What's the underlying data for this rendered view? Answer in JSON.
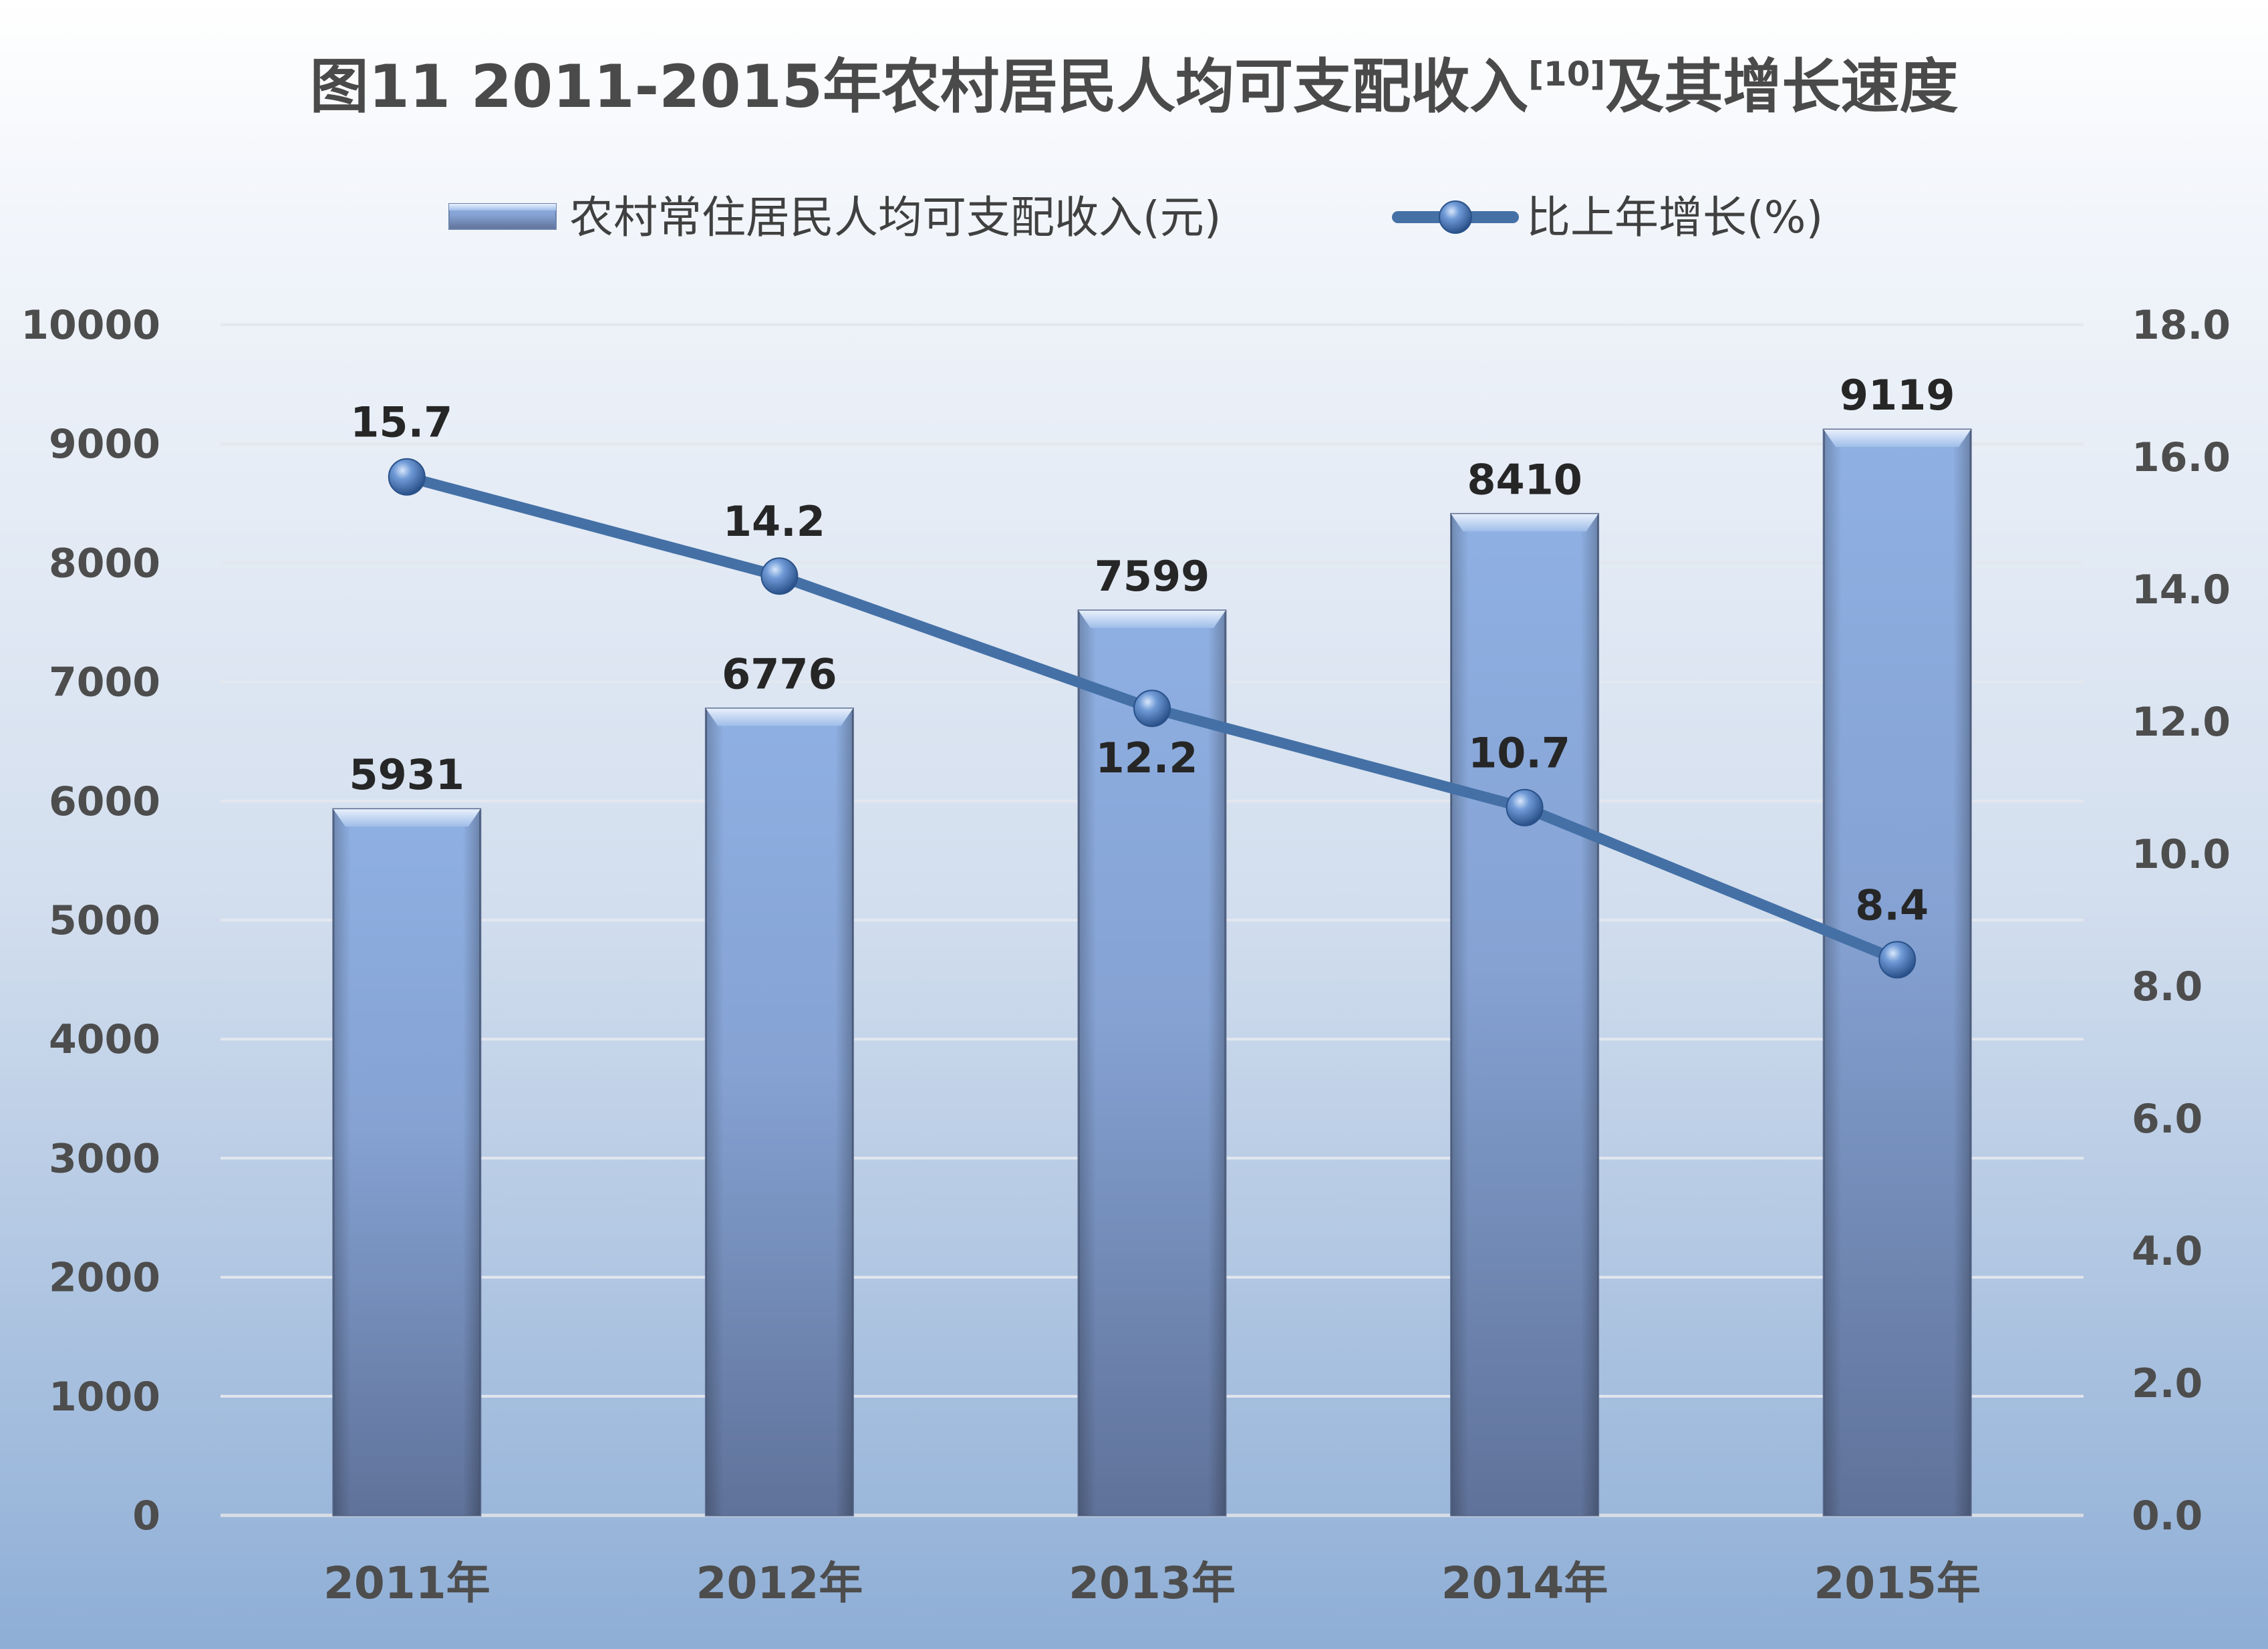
{
  "chart_data": {
    "type": "bar",
    "title": {
      "main": "图11   2011-2015年农村居民人均可支配收入",
      "superscript": "[10]",
      "suffix": "及其增长速度"
    },
    "categories": [
      "2011年",
      "2012年",
      "2013年",
      "2014年",
      "2015年"
    ],
    "series": [
      {
        "name": "农村常住居民人均可支配收入(元)",
        "type": "bar",
        "axis": "left",
        "values": [
          5931,
          6776,
          7599,
          8410,
          9119
        ],
        "labels": [
          "5931",
          "6776",
          "7599",
          "8410",
          "9119"
        ]
      },
      {
        "name": "比上年增长(%)",
        "type": "line",
        "axis": "right",
        "values": [
          15.7,
          14.2,
          12.2,
          10.7,
          8.4
        ],
        "labels": [
          "15.7",
          "14.2",
          "12.2",
          "10.7",
          "8.4"
        ]
      }
    ],
    "y_left": {
      "ylim": [
        0,
        10000
      ],
      "ticks": [
        "0",
        "1000",
        "2000",
        "3000",
        "4000",
        "5000",
        "6000",
        "7000",
        "8000",
        "9000",
        "10000"
      ]
    },
    "y_right": {
      "ylim": [
        0,
        18
      ],
      "ticks": [
        "0.0",
        "2.0",
        "4.0",
        "6.0",
        "8.0",
        "10.0",
        "12.0",
        "14.0",
        "16.0",
        "18.0"
      ]
    },
    "grid": true,
    "legend_position": "top-center",
    "colors": {
      "bar_top": "#a9c4ec",
      "bar_mid": "#86a3d4",
      "bar_bottom": "#5c7097",
      "line": "#4470a6",
      "background_top": "#ffffff",
      "background_bottom": "#90afd6",
      "grid": "#e0e4ec"
    }
  }
}
